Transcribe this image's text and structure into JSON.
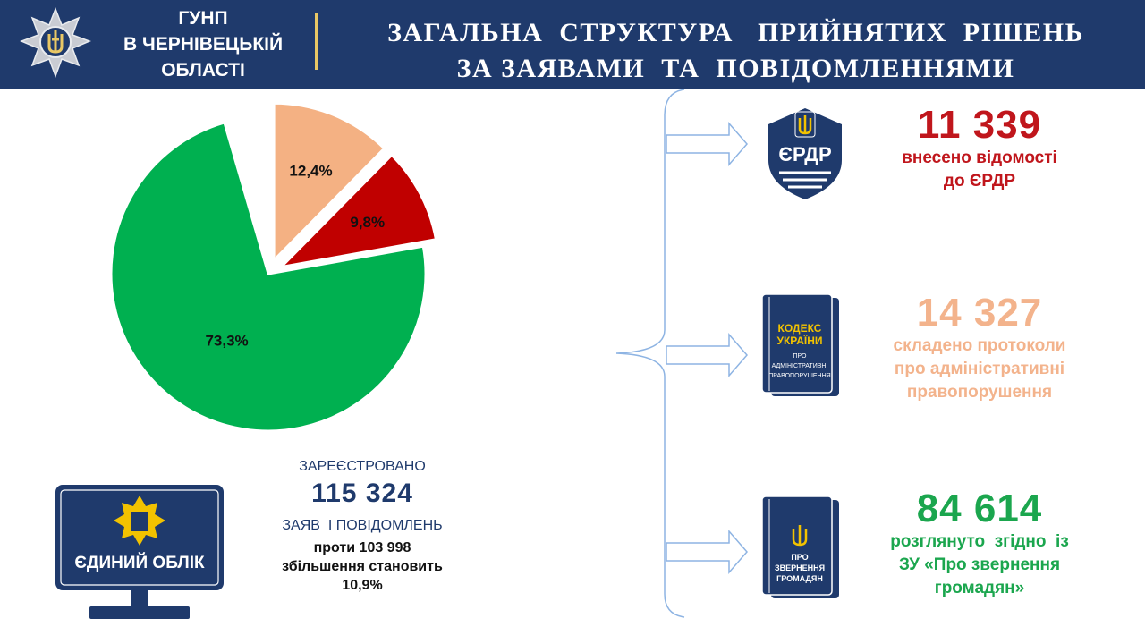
{
  "header": {
    "org_line1": "ГУНП",
    "org_line2": "В ЧЕРНІВЕЦЬКІЙ",
    "org_line3": "ОБЛАСТІ",
    "title_line1": "ЗАГАЛЬНА  СТРУКТУРА   ПРИЙНЯТИХ  РІШЕНЬ",
    "title_line2": "ЗА ЗАЯВАМИ  ТА  ПОВІДОМЛЕННЯМИ"
  },
  "chart_data": {
    "type": "pie",
    "slices": [
      {
        "label": "12,4%",
        "value": 12.4,
        "color": "#f4b183",
        "exploded": true
      },
      {
        "label": "9,8%",
        "value": 9.8,
        "color": "#c00000",
        "exploded": true
      },
      {
        "label": "73,3%",
        "value": 73.3,
        "color": "#00b050",
        "exploded": false
      }
    ],
    "unlabeled_gap": 4.5
  },
  "stats": {
    "erdr": {
      "number": "11 339",
      "line1": "внесено відомості",
      "line2": "до ЄРДР",
      "color": "#c0161c"
    },
    "protocols": {
      "number": "14 327",
      "line1": "складено протоколи",
      "line2": "про адміністративні",
      "line3": "правопорушення",
      "color": "#f3b38c"
    },
    "appeals": {
      "number": "84 614",
      "line1": "розглянуто  згідно  із",
      "line2": "ЗУ «Про звернення",
      "line3": "громадян»",
      "color": "#1ba64e"
    }
  },
  "icons": {
    "erdr_text": "ЄРДР",
    "code_line1": "КОДЕКС",
    "code_line2": "УКРАЇНИ",
    "code_line3": "ПРО",
    "code_line4": "АДМІНІСТРАТИВНІ",
    "code_line5": "ПРАВОПОРУШЕННЯ",
    "law_line1": "ПРО",
    "law_line2": "ЗВЕРНЕННЯ",
    "law_line3": "ГРОМАДЯН",
    "monitor_text": "ЄДИНИЙ ОБЛІК"
  },
  "registered": {
    "top": "ЗАРЕЄСТРОВАНО",
    "number": "115 324",
    "mid": "ЗАЯВ  І ПОВІДОМЛЕНЬ",
    "line1": "проти 103 998",
    "line2": "збільшення становить",
    "line3": "10,9%"
  },
  "colors": {
    "header_bg": "#1f3a6c",
    "accent_gold": "#e8c765",
    "connector": "#8eb4e3"
  }
}
